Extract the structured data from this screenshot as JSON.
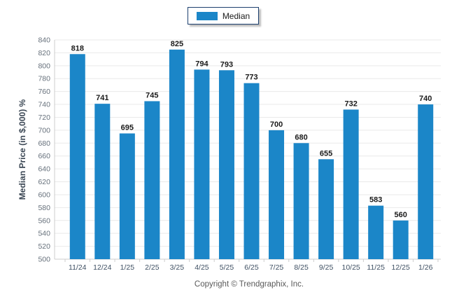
{
  "legend": {
    "label": "Median",
    "swatch_color": "#1b86c8"
  },
  "footer": {
    "copyright": "Copyright © Trendgraphix, Inc."
  },
  "chart_data": {
    "type": "bar",
    "title": "",
    "categories": [
      "11/24",
      "12/24",
      "1/25",
      "2/25",
      "3/25",
      "4/25",
      "5/25",
      "6/25",
      "7/25",
      "8/25",
      "9/25",
      "10/25",
      "11/25",
      "12/25",
      "1/26"
    ],
    "series": [
      {
        "name": "Median",
        "values": [
          818,
          741,
          695,
          745,
          825,
          794,
          793,
          773,
          700,
          680,
          655,
          732,
          583,
          560,
          740
        ]
      }
    ],
    "xlabel": "",
    "ylabel": "Median Price (in $,000) %",
    "ylim": [
      500,
      840
    ],
    "ytick_step": 20,
    "grid": true,
    "legend_position": "top-center",
    "bar_color": "#1b86c8",
    "colors": {
      "grid": "#e9e9e9",
      "axis": "#cdcdcd",
      "ytick_label": "#66707b",
      "xtick_label": "#3f5063",
      "value_label": "#1a1a1a",
      "ylabel_color": "#3b4754"
    }
  }
}
